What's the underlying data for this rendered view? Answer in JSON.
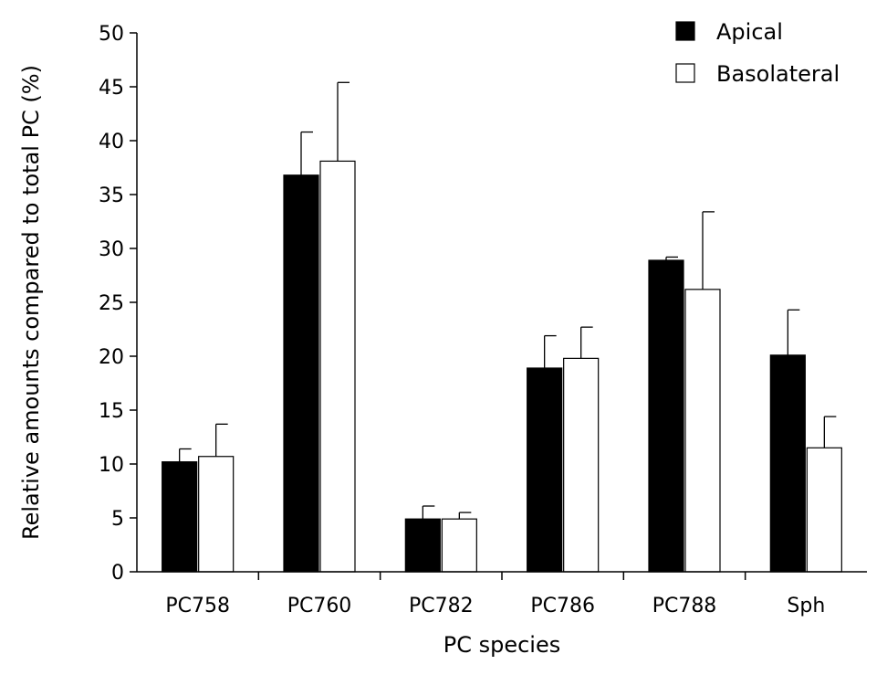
{
  "chart_data": {
    "type": "bar",
    "title": "",
    "xlabel": "PC species",
    "ylabel": "Relative amounts compared to total PC (%)",
    "ylim": [
      0,
      50
    ],
    "yticks": [
      "0",
      "5",
      "10",
      "15",
      "20",
      "25",
      "30",
      "35",
      "40",
      "45",
      "50"
    ],
    "categories": [
      "PC758",
      "PC760",
      "PC782",
      "PC786",
      "PC788",
      "Sph"
    ],
    "series": [
      {
        "name": "Apical",
        "color": "#000000",
        "values": [
          10.2,
          36.8,
          4.9,
          18.9,
          28.9,
          20.1
        ],
        "error_upper": [
          11.4,
          40.8,
          6.1,
          21.9,
          29.2,
          24.3
        ]
      },
      {
        "name": "Basolateral",
        "color": "#ffffff",
        "values": [
          10.7,
          38.1,
          4.9,
          19.8,
          26.2,
          11.5
        ],
        "error_upper": [
          13.7,
          45.4,
          5.5,
          22.7,
          33.4,
          14.4
        ]
      }
    ],
    "legend_position": "top-right",
    "grid": false
  }
}
